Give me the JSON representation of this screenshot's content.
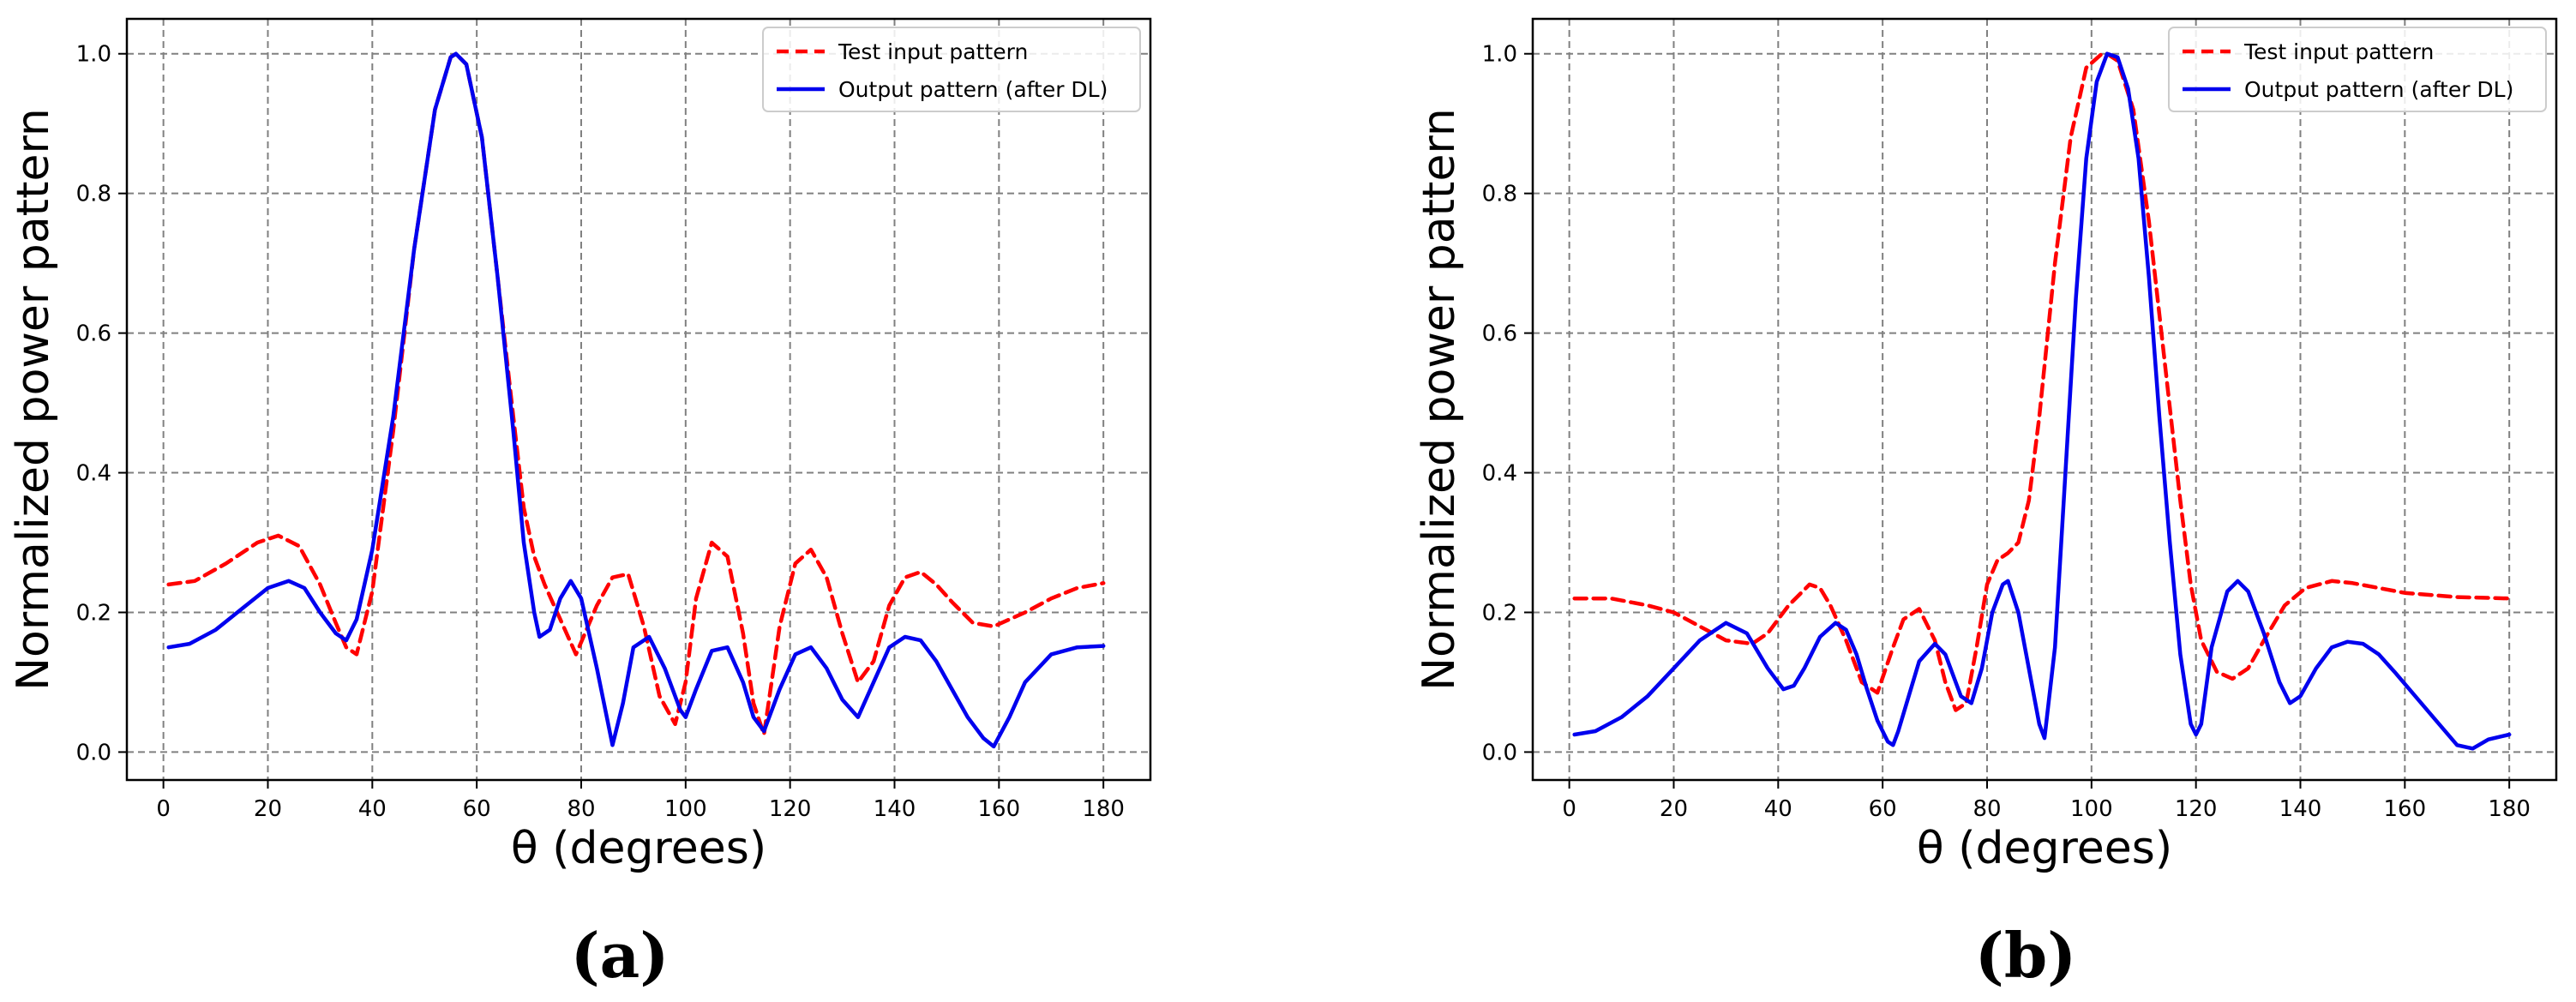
{
  "chart_data": [
    {
      "type": "line",
      "caption": "(a)",
      "xlabel": "θ (degrees)",
      "ylabel": "Normalized power pattern",
      "xlim": [
        -7,
        189
      ],
      "ylim": [
        -0.04,
        1.05
      ],
      "xticks": [
        0,
        20,
        40,
        60,
        80,
        100,
        120,
        140,
        160,
        180
      ],
      "yticks": [
        0.0,
        0.2,
        0.4,
        0.6,
        0.8,
        1.0
      ],
      "xtick_labels": [
        "0",
        "20",
        "40",
        "60",
        "80",
        "100",
        "120",
        "140",
        "160",
        "180"
      ],
      "ytick_labels": [
        "0.0",
        "0.2",
        "0.4",
        "0.6",
        "0.8",
        "1.0"
      ],
      "grid": true,
      "legend_position": "top-right",
      "series": [
        {
          "name": "Test input pattern",
          "color": "#ff0000",
          "style": "dashed",
          "x": [
            1,
            6,
            12,
            18,
            22,
            26,
            30,
            33,
            35,
            37,
            40,
            44,
            48,
            52,
            55,
            56,
            58,
            61,
            64,
            67,
            69,
            71,
            73,
            76,
            79,
            83,
            86,
            89,
            92,
            95,
            98,
            100,
            102,
            105,
            108,
            111,
            113,
            115,
            118,
            121,
            124,
            127,
            130,
            133,
            136,
            139,
            142,
            145,
            148,
            151,
            155,
            159,
            165,
            170,
            175,
            180
          ],
          "y": [
            0.24,
            0.245,
            0.27,
            0.3,
            0.31,
            0.295,
            0.24,
            0.185,
            0.15,
            0.14,
            0.23,
            0.46,
            0.72,
            0.92,
            0.995,
            1.0,
            0.985,
            0.88,
            0.68,
            0.48,
            0.35,
            0.28,
            0.24,
            0.19,
            0.14,
            0.21,
            0.25,
            0.255,
            0.18,
            0.08,
            0.04,
            0.1,
            0.22,
            0.3,
            0.28,
            0.17,
            0.07,
            0.025,
            0.18,
            0.27,
            0.29,
            0.25,
            0.17,
            0.1,
            0.13,
            0.21,
            0.25,
            0.258,
            0.24,
            0.215,
            0.185,
            0.18,
            0.2,
            0.22,
            0.235,
            0.242
          ]
        },
        {
          "name": "Output pattern (after DL)",
          "color": "#0000ee",
          "style": "solid",
          "x": [
            1,
            5,
            10,
            15,
            20,
            24,
            27,
            30,
            33,
            35,
            37,
            40,
            44,
            48,
            52,
            55,
            56,
            58,
            61,
            64,
            67,
            69,
            71,
            72,
            74,
            76,
            78,
            80,
            83,
            86,
            88,
            90,
            93,
            96,
            99,
            100,
            102,
            105,
            108,
            111,
            113,
            115,
            118,
            121,
            124,
            127,
            130,
            133,
            136,
            139,
            142,
            145,
            148,
            151,
            154,
            157,
            159,
            162,
            165,
            170,
            175,
            180
          ],
          "y": [
            0.15,
            0.155,
            0.175,
            0.205,
            0.235,
            0.245,
            0.235,
            0.2,
            0.17,
            0.16,
            0.19,
            0.29,
            0.48,
            0.72,
            0.92,
            0.995,
            1.0,
            0.985,
            0.88,
            0.68,
            0.46,
            0.3,
            0.2,
            0.165,
            0.175,
            0.22,
            0.245,
            0.22,
            0.12,
            0.01,
            0.07,
            0.15,
            0.165,
            0.12,
            0.06,
            0.05,
            0.09,
            0.145,
            0.15,
            0.1,
            0.05,
            0.03,
            0.09,
            0.14,
            0.15,
            0.12,
            0.075,
            0.05,
            0.1,
            0.15,
            0.165,
            0.16,
            0.13,
            0.09,
            0.05,
            0.02,
            0.008,
            0.05,
            0.1,
            0.14,
            0.15,
            0.152
          ]
        }
      ]
    },
    {
      "type": "line",
      "caption": "(b)",
      "xlabel": "θ (degrees)",
      "ylabel": "Normalized power pattern",
      "xlim": [
        -7,
        189
      ],
      "ylim": [
        -0.04,
        1.05
      ],
      "xticks": [
        0,
        20,
        40,
        60,
        80,
        100,
        120,
        140,
        160,
        180
      ],
      "yticks": [
        0.0,
        0.2,
        0.4,
        0.6,
        0.8,
        1.0
      ],
      "xtick_labels": [
        "0",
        "20",
        "40",
        "60",
        "80",
        "100",
        "120",
        "140",
        "160",
        "180"
      ],
      "ytick_labels": [
        "0.0",
        "0.2",
        "0.4",
        "0.6",
        "0.8",
        "1.0"
      ],
      "grid": true,
      "legend_position": "top-right",
      "series": [
        {
          "name": "Test input pattern",
          "color": "#ff0000",
          "style": "dashed",
          "x": [
            1,
            8,
            15,
            20,
            25,
            30,
            35,
            38,
            42,
            46,
            48,
            50,
            53,
            56,
            59,
            62,
            64,
            67,
            70,
            72,
            74,
            76,
            78,
            80,
            82,
            84,
            86,
            88,
            90,
            93,
            96,
            99,
            102,
            103,
            105,
            108,
            111,
            114,
            117,
            119,
            121,
            124,
            127,
            130,
            133,
            137,
            141,
            146,
            150,
            155,
            160,
            170,
            180
          ],
          "y": [
            0.22,
            0.22,
            0.21,
            0.2,
            0.18,
            0.16,
            0.155,
            0.17,
            0.21,
            0.24,
            0.235,
            0.21,
            0.16,
            0.1,
            0.085,
            0.15,
            0.19,
            0.205,
            0.16,
            0.1,
            0.06,
            0.07,
            0.15,
            0.24,
            0.275,
            0.285,
            0.3,
            0.36,
            0.48,
            0.7,
            0.88,
            0.98,
            1.0,
            1.0,
            0.99,
            0.92,
            0.76,
            0.56,
            0.36,
            0.24,
            0.16,
            0.115,
            0.105,
            0.12,
            0.16,
            0.21,
            0.235,
            0.245,
            0.242,
            0.235,
            0.228,
            0.222,
            0.22
          ]
        },
        {
          "name": "Output pattern (after DL)",
          "color": "#0000ee",
          "style": "solid",
          "x": [
            1,
            5,
            10,
            15,
            20,
            25,
            30,
            34,
            38,
            41,
            43,
            45,
            48,
            51,
            53,
            55,
            57,
            59,
            61,
            62,
            63,
            65,
            67,
            70,
            72,
            74,
            75,
            77,
            79,
            81,
            83,
            84,
            86,
            88,
            90,
            91,
            93,
            95,
            97,
            99,
            101,
            103,
            105,
            107,
            109,
            111,
            113,
            115,
            117,
            119,
            120,
            121,
            123,
            126,
            128,
            130,
            133,
            136,
            138,
            140,
            143,
            146,
            149,
            152,
            155,
            158,
            162,
            166,
            170,
            173,
            176,
            180
          ],
          "y": [
            0.025,
            0.03,
            0.05,
            0.08,
            0.12,
            0.16,
            0.185,
            0.17,
            0.12,
            0.09,
            0.095,
            0.12,
            0.165,
            0.185,
            0.175,
            0.14,
            0.09,
            0.045,
            0.015,
            0.01,
            0.03,
            0.08,
            0.13,
            0.155,
            0.14,
            0.1,
            0.08,
            0.07,
            0.12,
            0.2,
            0.24,
            0.245,
            0.2,
            0.12,
            0.04,
            0.02,
            0.15,
            0.4,
            0.65,
            0.85,
            0.96,
            1.0,
            0.995,
            0.95,
            0.85,
            0.68,
            0.48,
            0.3,
            0.14,
            0.04,
            0.025,
            0.04,
            0.15,
            0.23,
            0.245,
            0.23,
            0.17,
            0.1,
            0.07,
            0.08,
            0.12,
            0.15,
            0.158,
            0.155,
            0.14,
            0.115,
            0.08,
            0.045,
            0.01,
            0.005,
            0.018,
            0.025
          ]
        }
      ]
    }
  ]
}
